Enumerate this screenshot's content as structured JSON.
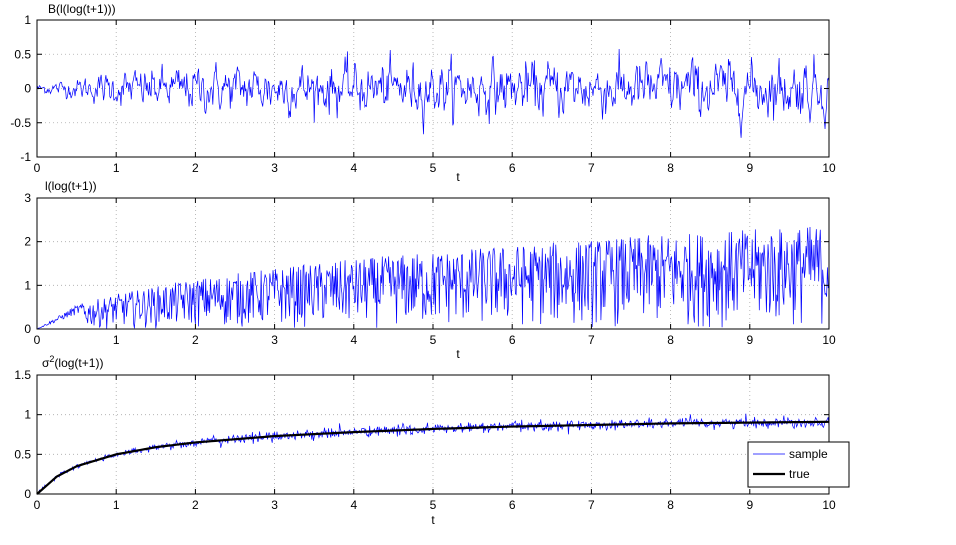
{
  "chart_data": [
    {
      "type": "line",
      "title": "B(l(log(t+1)))",
      "xlabel": "t",
      "ylabel": "",
      "xlim": [
        0,
        10
      ],
      "ylim": [
        -1,
        1
      ],
      "xticks": [
        "0",
        "1",
        "2",
        "3",
        "4",
        "5",
        "6",
        "7",
        "8",
        "9",
        "10"
      ],
      "yticks": [
        "-1",
        "-0.5",
        "0",
        "0.5",
        "1"
      ],
      "grid": true,
      "series": [
        {
          "name": "",
          "color": "#0000ff",
          "style": "noisy-zero-mean",
          "x": [
            0,
            0.5,
            1,
            2,
            3,
            4,
            5,
            6,
            7,
            8,
            9,
            10
          ],
          "envelope_std": [
            0.05,
            0.12,
            0.2,
            0.26,
            0.28,
            0.29,
            0.3,
            0.31,
            0.32,
            0.33,
            0.33,
            0.34
          ]
        }
      ]
    },
    {
      "type": "line",
      "title": "l(log(t+1))",
      "xlabel": "t",
      "ylabel": "",
      "xlim": [
        0,
        10
      ],
      "ylim": [
        0,
        3
      ],
      "xticks": [
        "0",
        "1",
        "2",
        "3",
        "4",
        "5",
        "6",
        "7",
        "8",
        "9",
        "10"
      ],
      "yticks": [
        "0",
        "1",
        "2",
        "3"
      ],
      "grid": true,
      "series": [
        {
          "name": "",
          "color": "#0000ff",
          "style": "noisy-under-envelope",
          "x": [
            0,
            0.5,
            1,
            2,
            3,
            4,
            5,
            6,
            7,
            8,
            9,
            10
          ],
          "upper_envelope": [
            0,
            0.55,
            0.8,
            1.15,
            1.4,
            1.6,
            1.78,
            1.92,
            2.05,
            2.18,
            2.28,
            2.4
          ]
        }
      ]
    },
    {
      "type": "line",
      "title": "σ²(log(t+1))",
      "title_base": "σ",
      "title_sup": "2",
      "title_rest": "(log(t+1))",
      "xlabel": "t",
      "ylabel": "",
      "xlim": [
        0,
        10
      ],
      "ylim": [
        0,
        1.5
      ],
      "xticks": [
        "0",
        "1",
        "2",
        "3",
        "4",
        "5",
        "6",
        "7",
        "8",
        "9",
        "10"
      ],
      "yticks": [
        "0",
        "0.5",
        "1",
        "1.5"
      ],
      "grid": true,
      "legend_position": "bottom-right",
      "series": [
        {
          "name": "sample",
          "color": "#0000ff",
          "style": "noisy-around-true"
        },
        {
          "name": "true",
          "color": "#000000",
          "style": "smooth",
          "x": [
            0,
            0.25,
            0.5,
            1,
            1.5,
            2,
            3,
            4,
            5,
            6,
            7,
            8,
            9,
            10
          ],
          "y": [
            0,
            0.22,
            0.35,
            0.5,
            0.59,
            0.65,
            0.73,
            0.78,
            0.82,
            0.85,
            0.87,
            0.89,
            0.9,
            0.91
          ]
        }
      ]
    }
  ]
}
